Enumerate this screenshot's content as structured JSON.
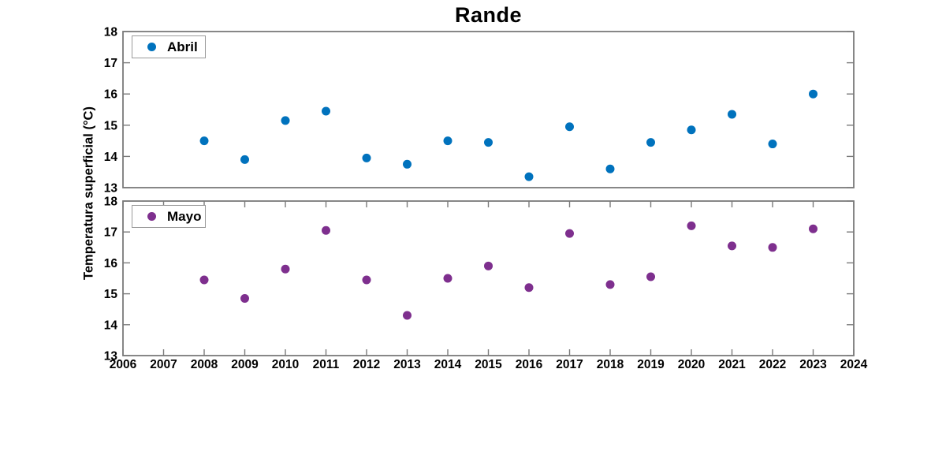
{
  "chart_data": {
    "type": "scatter",
    "title": "Rande",
    "ylabel": "Temperatura superficial (°C)",
    "xlabel": "",
    "grid": false,
    "legend_position": "top-left-inside",
    "xlim": [
      2006,
      2024
    ],
    "ylim": [
      13,
      18
    ],
    "x_ticks": [
      2006,
      2007,
      2008,
      2009,
      2010,
      2011,
      2012,
      2013,
      2014,
      2015,
      2016,
      2017,
      2018,
      2019,
      2020,
      2021,
      2022,
      2023,
      2024
    ],
    "y_ticks": [
      13,
      14,
      15,
      16,
      17,
      18
    ],
    "x": [
      2008,
      2009,
      2010,
      2011,
      2012,
      2013,
      2014,
      2015,
      2016,
      2017,
      2018,
      2019,
      2020,
      2021,
      2022,
      2023
    ],
    "panels": [
      {
        "name": "abril",
        "legend_label": "Abril",
        "color": "#0072BD",
        "values": [
          14.5,
          13.9,
          15.15,
          15.45,
          13.95,
          13.75,
          14.5,
          14.45,
          13.35,
          14.95,
          13.6,
          14.45,
          14.85,
          15.35,
          14.4,
          16.0
        ]
      },
      {
        "name": "mayo",
        "legend_label": "Mayo",
        "color": "#7E2F8E",
        "values": [
          15.45,
          14.85,
          15.8,
          17.05,
          15.45,
          14.3,
          15.5,
          15.9,
          15.2,
          16.95,
          15.3,
          15.55,
          17.2,
          16.55,
          16.5,
          17.1
        ]
      }
    ],
    "axis_color": "#7a7a7a",
    "tick_label_color": "#000000"
  }
}
